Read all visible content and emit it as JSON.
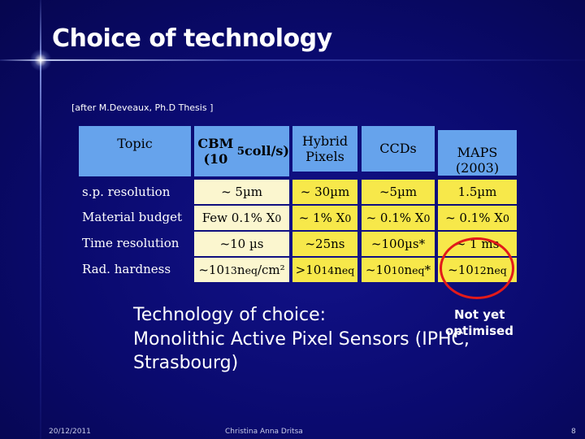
{
  "slide": {
    "title": "Choice of technology",
    "reference": "[after M.Deveaux, Ph.D Thesis ]"
  },
  "table": {
    "headers": [
      "Topic",
      "CBM (10<sup>5</sup> coll/s)",
      "Hybrid Pixels",
      "CCDs",
      "MAPS (2003)"
    ],
    "rows": [
      {
        "label": "s.p. resolution",
        "cells": [
          "~ 5µm",
          "~ 30µm",
          "~5µm",
          "1.5µm"
        ]
      },
      {
        "label": "Material budget",
        "cells": [
          "Few 0.1% X<sub>0</sub>",
          "~ 1% X<sub>0</sub>",
          "~ 0.1% X<sub>0</sub>",
          "~ 0.1% X<sub>0</sub>"
        ]
      },
      {
        "label": "Time resolution",
        "cells": [
          "~10 µs",
          "~25ns",
          "~100µs*",
          "~ 1 ms"
        ]
      },
      {
        "label": "Rad. hardness",
        "cells": [
          "~10<sup>13</sup> n<sub>eq</sub>/cm²",
          "&gt;10<sup>14</sup>n<sub>eq</sub>",
          "~10<sup>10</sup> n<sub>eq</sub>*",
          "~10<sup>12</sup> n<sub>eq</sub>"
        ]
      }
    ]
  },
  "choice": {
    "line1": "Technology of choice:",
    "line2": "Monolithic Active Pixel Sensors (IPHC,",
    "line3": "Strasbourg)"
  },
  "note": {
    "line1": "Not yet",
    "line2": "optimised"
  },
  "footer": {
    "date": "20/12/2011",
    "author": "Christina Anna Dritsa",
    "page": "8"
  },
  "colors": {
    "background": "#0a0a6e",
    "header_cell": "#66a3ec",
    "cream_cell": "#fbf6cf",
    "yellow_cell": "#f7e84a",
    "highlight_circle": "#e21a1a"
  }
}
